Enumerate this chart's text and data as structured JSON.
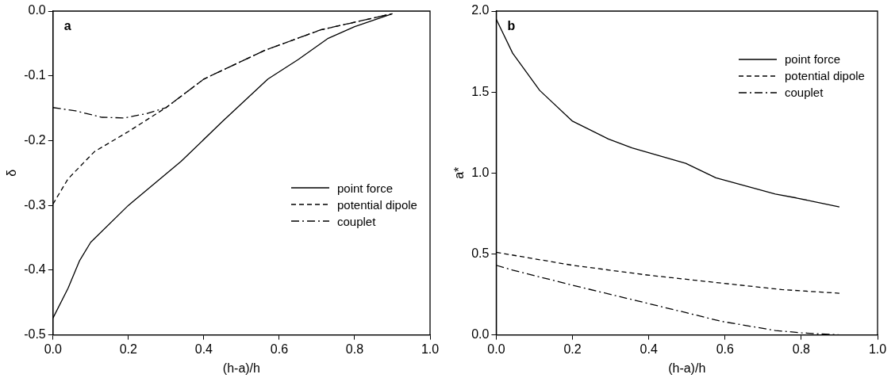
{
  "chart_data": [
    {
      "type": "line",
      "xlabel": "(h-a)/h",
      "ylabel": "δ",
      "annotations": [
        "a"
      ],
      "xlim": [
        0,
        1
      ],
      "xticks": [
        {
          "value": 0,
          "label": "0.0"
        },
        {
          "value": 0.2,
          "label": "0.2"
        },
        {
          "value": 0.4,
          "label": "0.4"
        },
        {
          "value": 0.6,
          "label": "0.6"
        },
        {
          "value": 0.8,
          "label": "0.8"
        },
        {
          "value": 1,
          "label": "1.0"
        }
      ],
      "ylim": [
        -0.5,
        0
      ],
      "yticks": [
        {
          "value": -0.5,
          "label": "-0.5"
        },
        {
          "value": -0.4,
          "label": "-0.4"
        },
        {
          "value": -0.3,
          "label": "-0.3"
        },
        {
          "value": -0.2,
          "label": "-0.2"
        },
        {
          "value": -0.1,
          "label": "-0.1"
        },
        {
          "value": 0,
          "label": "0.0"
        }
      ],
      "grid": false,
      "legend": "right",
      "marker": "none",
      "series": [
        {
          "name": "point force",
          "color": "#000000",
          "line_style": "solid",
          "x": [
            0,
            0.04,
            0.07,
            0.1,
            0.2,
            0.34,
            0.45,
            0.57,
            0.65,
            0.73,
            0.8,
            0.9
          ],
          "values": [
            -0.474,
            -0.428,
            -0.386,
            -0.357,
            -0.3,
            -0.232,
            -0.17,
            -0.105,
            -0.075,
            -0.042,
            -0.024,
            -0.004
          ]
        },
        {
          "name": "potential dipole",
          "color": "#000000",
          "line_style": "dashed",
          "x": [
            0,
            0.04,
            0.11,
            0.2,
            0.3,
            0.4,
            0.56,
            0.71,
            0.9
          ],
          "values": [
            -0.298,
            -0.259,
            -0.217,
            -0.186,
            -0.149,
            -0.105,
            -0.061,
            -0.029,
            -0.004
          ]
        },
        {
          "name": "couplet",
          "color": "#000000",
          "line_style": "dashdot",
          "x": [
            0,
            0.06,
            0.13,
            0.19,
            0.25,
            0.3,
            0.4,
            0.56,
            0.71,
            0.9
          ],
          "values": [
            -0.149,
            -0.154,
            -0.164,
            -0.165,
            -0.158,
            -0.149,
            -0.105,
            -0.061,
            -0.029,
            -0.004
          ]
        }
      ]
    },
    {
      "type": "line",
      "xlabel": "(h-a)/h",
      "ylabel": "a*",
      "annotations": [
        "b"
      ],
      "xlim": [
        0,
        1
      ],
      "xticks": [
        {
          "value": 0,
          "label": "0.0"
        },
        {
          "value": 0.2,
          "label": "0.2"
        },
        {
          "value": 0.4,
          "label": "0.4"
        },
        {
          "value": 0.6,
          "label": "0.6"
        },
        {
          "value": 0.8,
          "label": "0.8"
        },
        {
          "value": 1,
          "label": "1.0"
        }
      ],
      "ylim": [
        0,
        2
      ],
      "yticks": [
        {
          "value": 0,
          "label": "0.0"
        },
        {
          "value": 0.5,
          "label": "0.5"
        },
        {
          "value": 1,
          "label": "1.0"
        },
        {
          "value": 1.5,
          "label": "1.5"
        },
        {
          "value": 2,
          "label": "2.0"
        }
      ],
      "grid": false,
      "legend": "top right",
      "marker": "none",
      "series": [
        {
          "name": "point force",
          "color": "#000000",
          "line_style": "solid",
          "x": [
            0,
            0.043,
            0.114,
            0.2,
            0.294,
            0.356,
            0.497,
            0.576,
            0.732,
            0.787,
            0.9
          ],
          "values": [
            1.95,
            1.74,
            1.51,
            1.32,
            1.21,
            1.155,
            1.06,
            0.97,
            0.87,
            0.846,
            0.79
          ]
        },
        {
          "name": "potential dipole",
          "color": "#000000",
          "line_style": "dashed",
          "x": [
            0,
            0.2,
            0.395,
            0.59,
            0.748,
            0.9
          ],
          "values": [
            0.51,
            0.43,
            0.37,
            0.32,
            0.28,
            0.257
          ]
        },
        {
          "name": "couplet",
          "color": "#000000",
          "line_style": "dashdot",
          "x": [
            0,
            0.043,
            0.2,
            0.356,
            0.497,
            0.59,
            0.732,
            0.8,
            0.9
          ],
          "values": [
            0.43,
            0.4,
            0.307,
            0.218,
            0.138,
            0.084,
            0.027,
            0.013,
            0
          ]
        }
      ]
    }
  ]
}
